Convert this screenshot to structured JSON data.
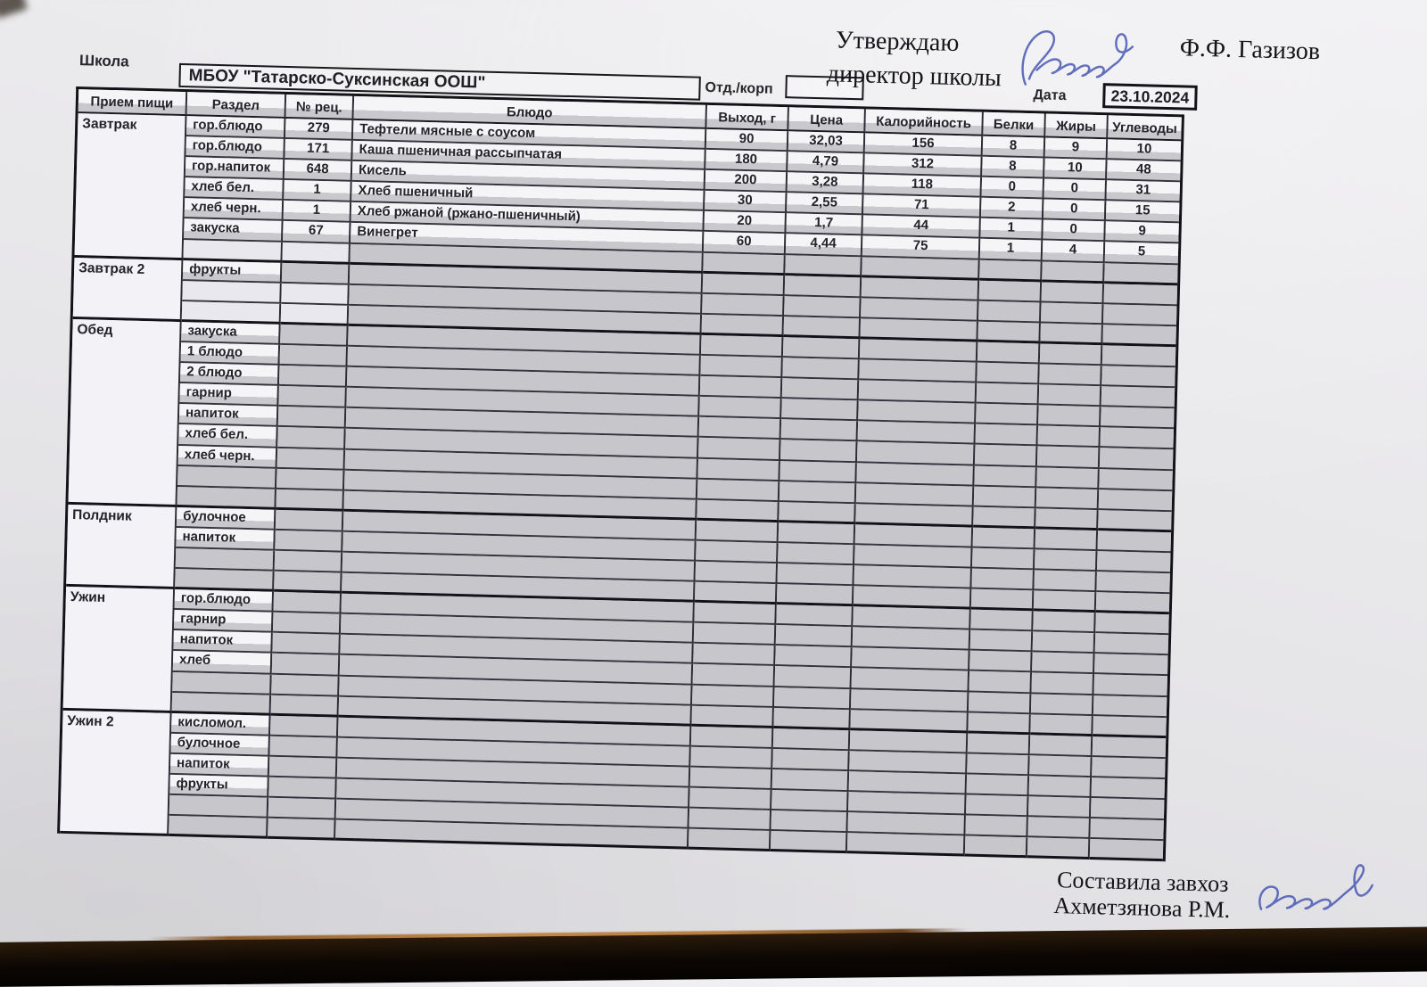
{
  "header": {
    "school_label": "Школа",
    "school_name": "МБОУ \"Татарско-Суксинская ООШ\"",
    "dept_label": "Отд./корп",
    "approve_line1": "Утверждаю",
    "approve_line2": "директор школы",
    "director_signature_text": "Газизов",
    "director_name": "Ф.Ф. Газизов",
    "date_label": "Дата",
    "date_value": "23.10.2024"
  },
  "table": {
    "columns": [
      "Прием пищи",
      "Раздел",
      "№ рец.",
      "Блюдо",
      "Выход, г",
      "Цена",
      "Калорийность",
      "Белки",
      "Жиры",
      "Углеводы"
    ],
    "sections": [
      {
        "meal": "Завтрак",
        "rows": [
          {
            "razdel": "гор.блюдо",
            "rec": "279",
            "dish": "Тефтели мясные с соусом",
            "vals": [
              "90",
              "32,03",
              "156",
              "8",
              "9",
              "10"
            ]
          },
          {
            "razdel": "гор.блюдо",
            "rec": "171",
            "dish": "Каша пшеничная рассыпчатая",
            "vals": [
              "180",
              "4,79",
              "312",
              "8",
              "10",
              "48"
            ]
          },
          {
            "razdel": "гор.напиток",
            "rec": "648",
            "dish": "Кисель",
            "vals": [
              "200",
              "3,28",
              "118",
              "0",
              "0",
              "31"
            ]
          },
          {
            "razdel": "хлеб бел.",
            "rec": "1",
            "dish": "Хлеб пшеничный",
            "vals": [
              "30",
              "2,55",
              "71",
              "2",
              "0",
              "15"
            ]
          },
          {
            "razdel": "хлеб черн.",
            "rec": "1",
            "dish": "Хлеб ржаной (ржано-пшеничный)",
            "vals": [
              "20",
              "1,7",
              "44",
              "1",
              "0",
              "9"
            ]
          },
          {
            "razdel": "закуска",
            "rec": "67",
            "dish": "Винегрет",
            "vals": [
              "60",
              "4,44",
              "75",
              "1",
              "4",
              "5"
            ]
          },
          {
            "light_left": true
          }
        ]
      },
      {
        "meal": "Завтрак 2",
        "rows": [
          {
            "razdel": "фрукты"
          },
          {
            "light_left": true
          },
          {
            "light_left": true
          }
        ]
      },
      {
        "meal": "Обед",
        "rows": [
          {
            "razdel": "закуска"
          },
          {
            "razdel": "1 блюдо"
          },
          {
            "razdel": "2 блюдо"
          },
          {
            "razdel": "гарнир"
          },
          {
            "razdel": "напиток"
          },
          {
            "razdel": "хлеб бел."
          },
          {
            "razdel": "хлеб черн."
          },
          {},
          {}
        ]
      },
      {
        "meal": "Полдник",
        "rows": [
          {
            "razdel": "булочное"
          },
          {
            "razdel": "напиток"
          },
          {},
          {}
        ]
      },
      {
        "meal": "Ужин",
        "rows": [
          {
            "razdel": "гор.блюдо"
          },
          {
            "razdel": "гарнир"
          },
          {
            "razdel": "напиток"
          },
          {
            "razdel": "хлеб"
          },
          {},
          {}
        ]
      },
      {
        "meal": "Ужин 2",
        "rows": [
          {
            "razdel": "кисломол."
          },
          {
            "razdel": "булочное"
          },
          {
            "razdel": "напиток"
          },
          {
            "razdel": "фрукты"
          },
          {},
          {}
        ]
      }
    ]
  },
  "footer": {
    "line1": "Составила завхоз",
    "line2": "Ахметзянова Р.М."
  }
}
